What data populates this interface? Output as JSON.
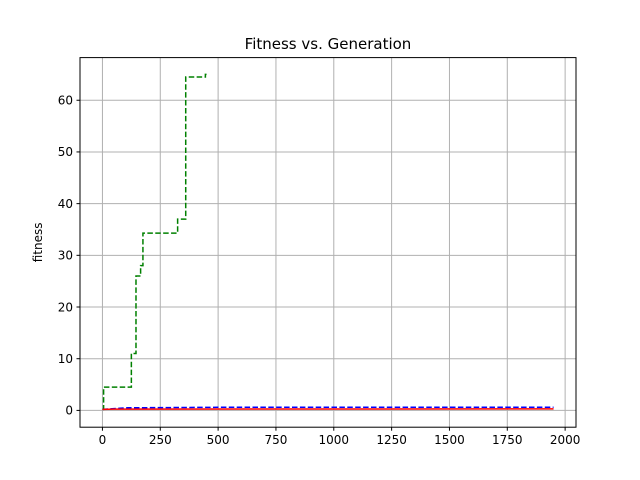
{
  "chart_data": {
    "type": "line",
    "title": "Fitness vs. Generation",
    "xlabel": "",
    "ylabel": "fitness",
    "xlim": [
      -97,
      2047
    ],
    "ylim": [
      -3.25,
      68.25
    ],
    "x_ticks": [
      0,
      250,
      500,
      750,
      1000,
      1250,
      1500,
      1750,
      2000
    ],
    "y_ticks": [
      0,
      10,
      20,
      30,
      40,
      50,
      60
    ],
    "grid": true,
    "series": [
      {
        "color": "#008000",
        "style": "dashed",
        "step": true,
        "points": [
          [
            0,
            0.2
          ],
          [
            5,
            4.5
          ],
          [
            120,
            4.5
          ],
          [
            125,
            11
          ],
          [
            140,
            11
          ],
          [
            145,
            26
          ],
          [
            160,
            26
          ],
          [
            165,
            28
          ],
          [
            170,
            28
          ],
          [
            175,
            34.3
          ],
          [
            320,
            34.3
          ],
          [
            325,
            37
          ],
          [
            350,
            37
          ],
          [
            360,
            64.5
          ],
          [
            440,
            64.5
          ],
          [
            445,
            65
          ],
          [
            450,
            65
          ]
        ]
      },
      {
        "color": "#0000ff",
        "style": "dashed",
        "step": false,
        "points": [
          [
            0,
            0.2
          ],
          [
            100,
            0.5
          ],
          [
            500,
            0.6
          ],
          [
            1950,
            0.6
          ]
        ]
      },
      {
        "color": "#ff0000",
        "style": "solid",
        "step": false,
        "points": [
          [
            0,
            0.2
          ],
          [
            50,
            0.25
          ],
          [
            1950,
            0.3
          ]
        ]
      }
    ]
  }
}
